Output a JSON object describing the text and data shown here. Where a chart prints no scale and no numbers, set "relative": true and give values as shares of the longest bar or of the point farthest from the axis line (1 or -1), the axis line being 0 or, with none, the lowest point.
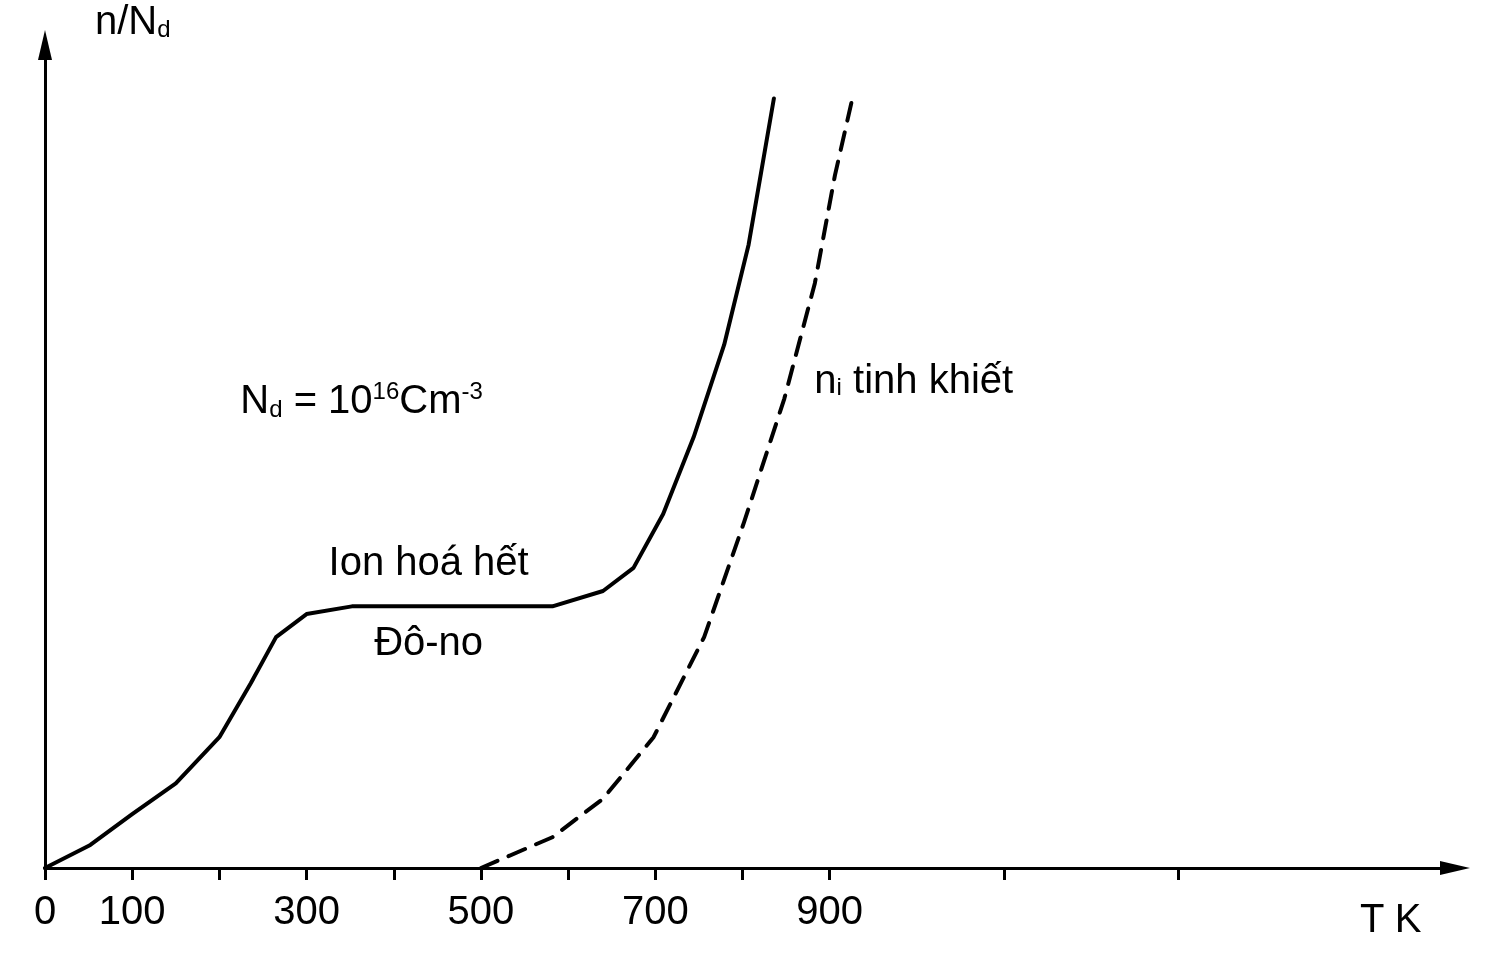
{
  "chart_data": {
    "type": "line",
    "relative": true,
    "xlabel": "T K",
    "ylabel": "n/N$_{d}$",
    "xlim": [
      0,
      1600
    ],
    "xticks": [
      0,
      100,
      {
        "value": 200,
        "label": null
      },
      300,
      {
        "value": 400,
        "label": null
      },
      500,
      {
        "value": 600,
        "label": null
      },
      700,
      {
        "value": 800,
        "label": null
      },
      900,
      {
        "value": 1100,
        "label": null
      },
      {
        "value": 1300,
        "label": null
      }
    ],
    "series": [
      {
        "color": "#000000",
        "line_style": "solid",
        "x": [
          0,
          52,
          100,
          150,
          200,
          236,
          265,
          300,
          352,
          467,
          582,
          640,
          675,
          709,
          744,
          779,
          807,
          836
        ],
        "values": [
          0,
          0.03,
          0.07,
          0.11,
          0.17,
          0.24,
          0.3,
          0.33,
          0.34,
          0.34,
          0.34,
          0.36,
          0.39,
          0.46,
          0.56,
          0.68,
          0.81,
          1
        ]
      },
      {
        "name": "n$_{i}$ tinh khiết",
        "color": "#000000",
        "line_style": "dashed",
        "x": [
          500,
          582,
          640,
          698,
          756,
          802,
          848,
          883,
          906,
          926
        ],
        "values": [
          0,
          0.04,
          0.09,
          0.17,
          0.3,
          0.45,
          0.61,
          0.76,
          0.9,
          1
        ]
      }
    ],
    "annotations": [
      "N$_{d}$ = 10$^{16}$Cm$^{-3}$",
      {
        "text": "Ion hoá hết",
        "x": 440,
        "y": 0.34
      },
      {
        "text": "Đô-no",
        "x": 440,
        "y": 0.34
      }
    ],
    "marker": "none",
    "grid": false,
    "legend": false
  }
}
